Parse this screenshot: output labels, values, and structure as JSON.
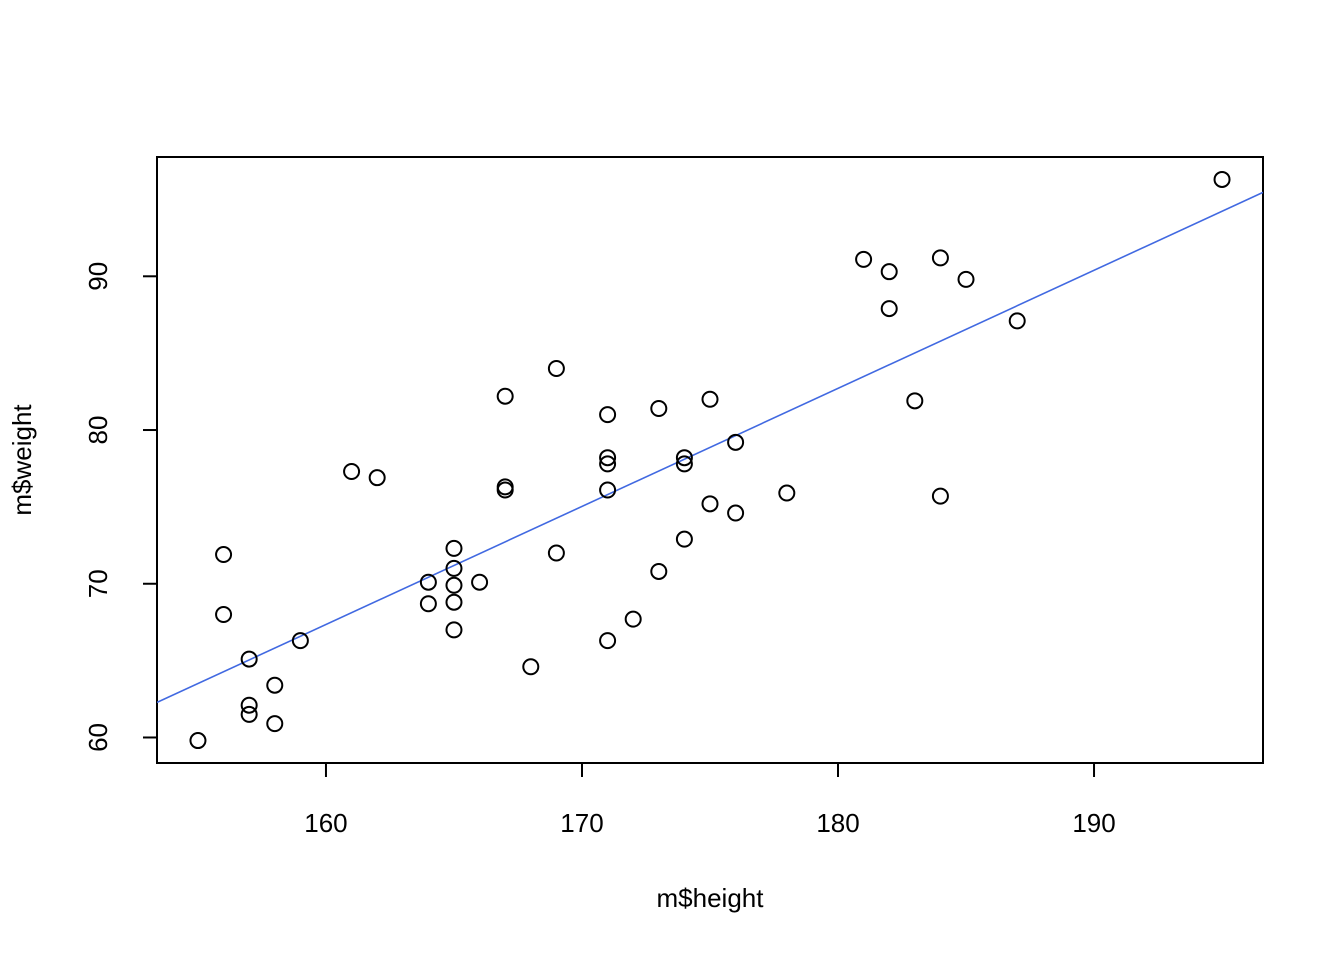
{
  "chart_data": {
    "type": "scatter",
    "x_label": "m$height",
    "y_label": "m$weight",
    "x": [
      155,
      156,
      156,
      157,
      157,
      157,
      158,
      158,
      159,
      161,
      162,
      164,
      164,
      165,
      165,
      165,
      165,
      165,
      166,
      167,
      167,
      167,
      168,
      169,
      169,
      171,
      171,
      171,
      171,
      171,
      172,
      173,
      173,
      174,
      174,
      174,
      175,
      175,
      176,
      176,
      178,
      181,
      182,
      182,
      183,
      184,
      184,
      185,
      187,
      195
    ],
    "y": [
      59.8,
      71.9,
      68.0,
      65.1,
      62.1,
      61.5,
      63.4,
      60.9,
      66.3,
      77.3,
      76.9,
      70.1,
      68.7,
      72.3,
      71.0,
      69.9,
      68.8,
      67.0,
      70.1,
      82.2,
      76.3,
      76.1,
      64.6,
      84.0,
      72.0,
      81.0,
      78.2,
      77.8,
      76.1,
      66.3,
      67.7,
      81.4,
      70.8,
      78.2,
      77.8,
      72.9,
      82.0,
      75.2,
      79.2,
      74.6,
      75.9,
      91.1,
      90.3,
      87.9,
      81.9,
      91.2,
      75.7,
      89.8,
      87.1,
      96.3
    ],
    "color": "#000000",
    "regression": {
      "intercept": -55.53,
      "slope": 0.768,
      "color": "#4169e1"
    },
    "xlim": [
      153.4,
      196.6
    ],
    "ylim": [
      58.34,
      97.76
    ],
    "xticks": [
      160,
      170,
      180,
      190
    ],
    "yticks": [
      60,
      70,
      80,
      90
    ]
  }
}
